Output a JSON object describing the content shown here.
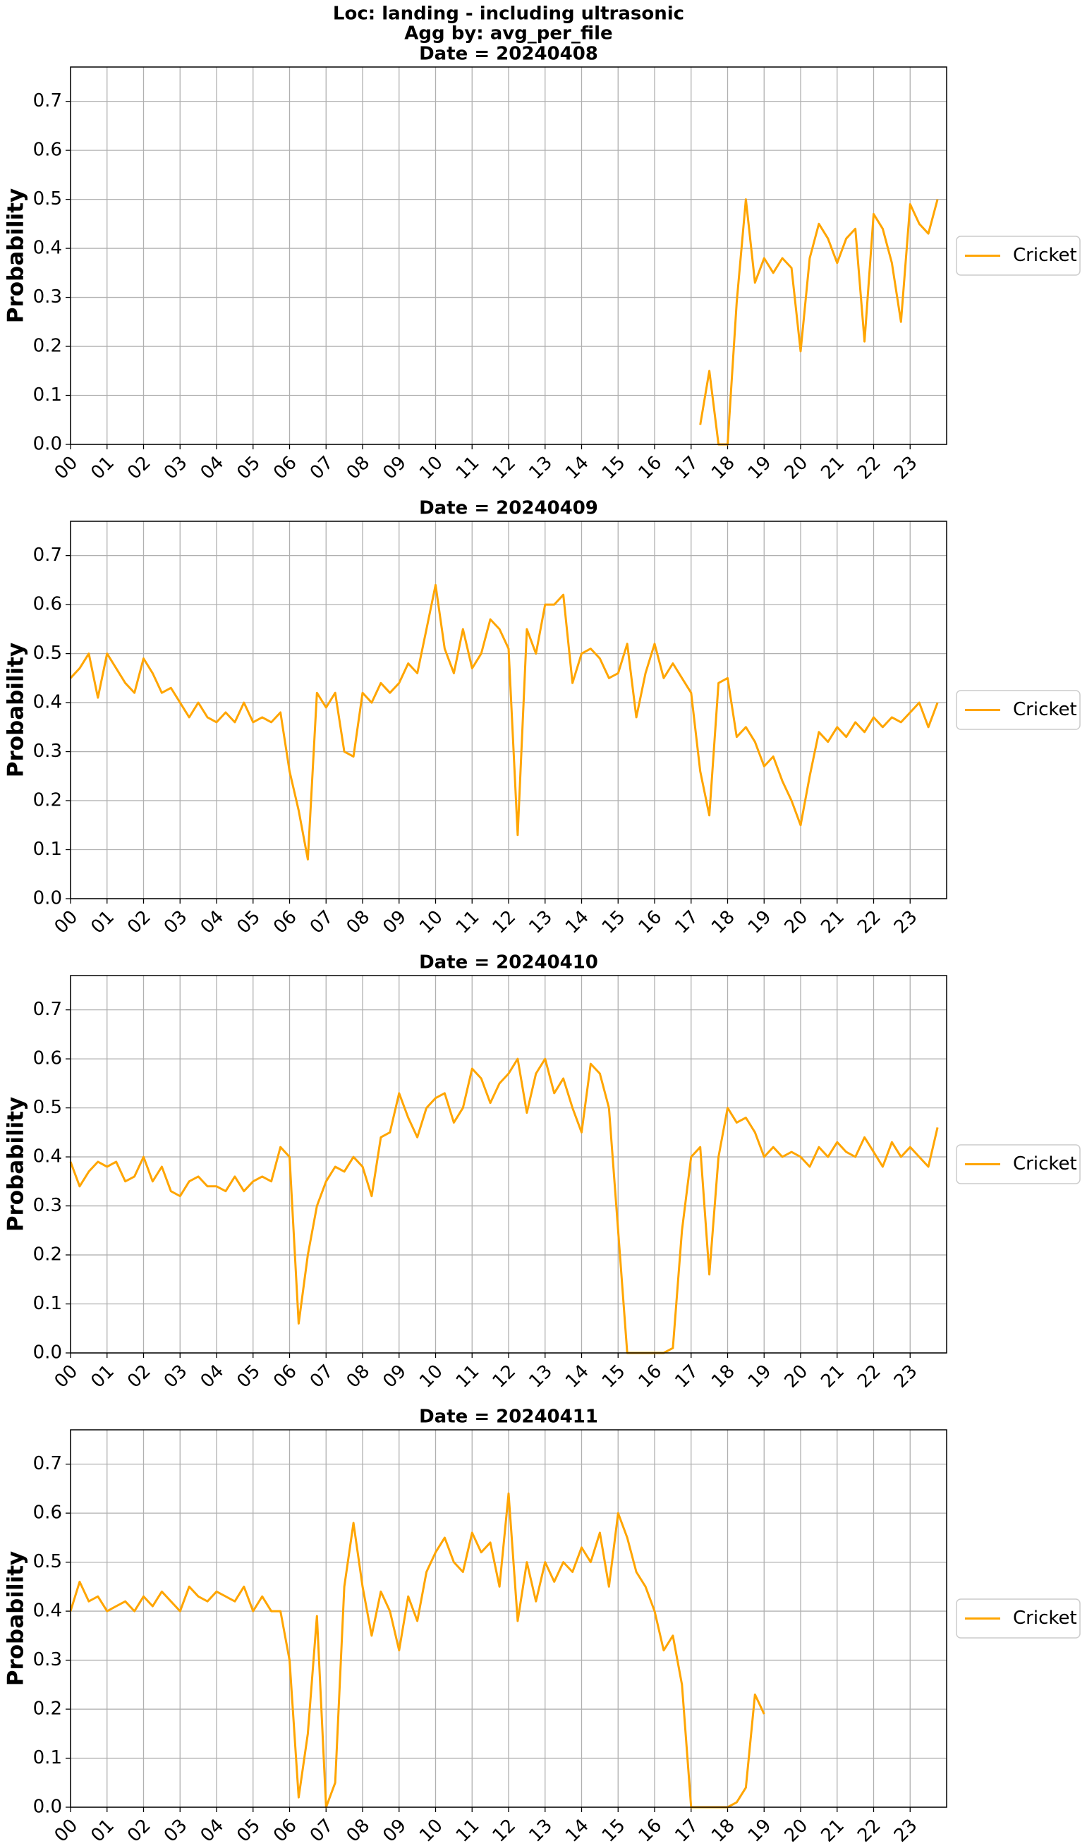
{
  "suptitle": [
    "Loc: landing - including ultrasonic",
    "Agg by: avg_per_file"
  ],
  "chart_data": [
    {
      "type": "line",
      "title": "Date = 20240408",
      "ylabel": "Probability",
      "grid": true,
      "legend": "center right outside",
      "xlim": [
        0,
        24
      ],
      "ylim": [
        0,
        0.77
      ],
      "xticks": [
        {
          "value": 0,
          "label": "00"
        },
        {
          "value": 1,
          "label": "01"
        },
        {
          "value": 2,
          "label": "02"
        },
        {
          "value": 3,
          "label": "03"
        },
        {
          "value": 4,
          "label": "04"
        },
        {
          "value": 5,
          "label": "05"
        },
        {
          "value": 6,
          "label": "06"
        },
        {
          "value": 7,
          "label": "07"
        },
        {
          "value": 8,
          "label": "08"
        },
        {
          "value": 9,
          "label": "09"
        },
        10,
        11,
        12,
        13,
        14,
        15,
        16,
        17,
        18,
        19,
        20,
        21,
        22,
        23
      ],
      "yticks": [
        {
          "value": 0,
          "label": "0.0"
        },
        0.1,
        0.2,
        0.3,
        0.4,
        0.5,
        0.6,
        0.7
      ],
      "x": [
        17.25,
        17.5,
        17.75,
        18,
        18.25,
        18.5,
        18.75,
        19,
        19.25,
        19.5,
        19.75,
        20,
        20.25,
        20.5,
        20.75,
        21,
        21.25,
        21.5,
        21.75,
        22,
        22.25,
        22.5,
        22.75,
        23,
        23.25,
        23.5,
        23.75
      ],
      "series": [
        {
          "name": "Cricket",
          "color": "#ffa500",
          "values": [
            0.04,
            0.15,
            0.0,
            0.0,
            0.29,
            0.5,
            0.33,
            0.38,
            0.35,
            0.38,
            0.36,
            0.19,
            0.38,
            0.45,
            0.42,
            0.37,
            0.42,
            0.44,
            0.21,
            0.47,
            0.44,
            0.37,
            0.25,
            0.49,
            0.45,
            0.43,
            0.5
          ]
        }
      ]
    },
    {
      "type": "line",
      "title": "Date = 20240409",
      "ylabel": "Probability",
      "grid": true,
      "legend": "center right outside",
      "xlim": [
        0,
        24
      ],
      "ylim": [
        0,
        0.77
      ],
      "xticks": [
        {
          "value": 0,
          "label": "00"
        },
        {
          "value": 1,
          "label": "01"
        },
        {
          "value": 2,
          "label": "02"
        },
        {
          "value": 3,
          "label": "03"
        },
        {
          "value": 4,
          "label": "04"
        },
        {
          "value": 5,
          "label": "05"
        },
        {
          "value": 6,
          "label": "06"
        },
        {
          "value": 7,
          "label": "07"
        },
        {
          "value": 8,
          "label": "08"
        },
        {
          "value": 9,
          "label": "09"
        },
        10,
        11,
        12,
        13,
        14,
        15,
        16,
        17,
        18,
        19,
        20,
        21,
        22,
        23
      ],
      "yticks": [
        {
          "value": 0,
          "label": "0.0"
        },
        0.1,
        0.2,
        0.3,
        0.4,
        0.5,
        0.6,
        0.7
      ],
      "x": [
        0,
        0.25,
        0.5,
        0.75,
        1,
        1.25,
        1.5,
        1.75,
        2,
        2.25,
        2.5,
        2.75,
        3,
        3.25,
        3.5,
        3.75,
        4,
        4.25,
        4.5,
        4.75,
        5,
        5.25,
        5.5,
        5.75,
        6,
        6.25,
        6.5,
        6.75,
        7,
        7.25,
        7.5,
        7.75,
        8,
        8.25,
        8.5,
        8.75,
        9,
        9.25,
        9.5,
        9.75,
        10,
        10.25,
        10.5,
        10.75,
        11,
        11.25,
        11.5,
        11.75,
        12,
        12.25,
        12.5,
        12.75,
        13,
        13.25,
        13.5,
        13.75,
        14,
        14.25,
        14.5,
        14.75,
        15,
        15.25,
        15.5,
        15.75,
        16,
        16.25,
        16.5,
        16.75,
        17,
        17.25,
        17.5,
        17.75,
        18,
        18.25,
        18.5,
        18.75,
        19,
        19.25,
        19.5,
        19.75,
        20,
        20.25,
        20.5,
        20.75,
        21,
        21.25,
        21.5,
        21.75,
        22,
        22.25,
        22.5,
        22.75,
        23,
        23.25,
        23.5,
        23.75
      ],
      "series": [
        {
          "name": "Cricket",
          "color": "#ffa500",
          "values": [
            0.45,
            0.47,
            0.5,
            0.41,
            0.5,
            0.47,
            0.44,
            0.42,
            0.49,
            0.46,
            0.42,
            0.43,
            0.4,
            0.37,
            0.4,
            0.37,
            0.36,
            0.38,
            0.36,
            0.4,
            0.36,
            0.37,
            0.36,
            0.38,
            0.26,
            0.18,
            0.08,
            0.42,
            0.39,
            0.42,
            0.3,
            0.29,
            0.42,
            0.4,
            0.44,
            0.42,
            0.44,
            0.48,
            0.46,
            0.55,
            0.64,
            0.51,
            0.46,
            0.55,
            0.47,
            0.5,
            0.57,
            0.55,
            0.51,
            0.13,
            0.55,
            0.5,
            0.6,
            0.6,
            0.62,
            0.44,
            0.5,
            0.51,
            0.49,
            0.45,
            0.46,
            0.52,
            0.37,
            0.46,
            0.52,
            0.45,
            0.48,
            0.45,
            0.42,
            0.26,
            0.17,
            0.44,
            0.45,
            0.33,
            0.35,
            0.32,
            0.27,
            0.29,
            0.24,
            0.2,
            0.15,
            0.25,
            0.34,
            0.32,
            0.35,
            0.33,
            0.36,
            0.34,
            0.37,
            0.35,
            0.37,
            0.36,
            0.38,
            0.4,
            0.35,
            0.4
          ]
        }
      ]
    },
    {
      "type": "line",
      "title": "Date = 20240410",
      "ylabel": "Probability",
      "grid": true,
      "legend": "center right outside",
      "xlim": [
        0,
        24
      ],
      "ylim": [
        0,
        0.77
      ],
      "xticks": [
        {
          "value": 0,
          "label": "00"
        },
        {
          "value": 1,
          "label": "01"
        },
        {
          "value": 2,
          "label": "02"
        },
        {
          "value": 3,
          "label": "03"
        },
        {
          "value": 4,
          "label": "04"
        },
        {
          "value": 5,
          "label": "05"
        },
        {
          "value": 6,
          "label": "06"
        },
        {
          "value": 7,
          "label": "07"
        },
        {
          "value": 8,
          "label": "08"
        },
        {
          "value": 9,
          "label": "09"
        },
        10,
        11,
        12,
        13,
        14,
        15,
        16,
        17,
        18,
        19,
        20,
        21,
        22,
        23
      ],
      "yticks": [
        {
          "value": 0,
          "label": "0.0"
        },
        0.1,
        0.2,
        0.3,
        0.4,
        0.5,
        0.6,
        0.7
      ],
      "x": [
        0,
        0.25,
        0.5,
        0.75,
        1,
        1.25,
        1.5,
        1.75,
        2,
        2.25,
        2.5,
        2.75,
        3,
        3.25,
        3.5,
        3.75,
        4,
        4.25,
        4.5,
        4.75,
        5,
        5.25,
        5.5,
        5.75,
        6,
        6.25,
        6.5,
        6.75,
        7,
        7.25,
        7.5,
        7.75,
        8,
        8.25,
        8.5,
        8.75,
        9,
        9.25,
        9.5,
        9.75,
        10,
        10.25,
        10.5,
        10.75,
        11,
        11.25,
        11.5,
        11.75,
        12,
        12.25,
        12.5,
        12.75,
        13,
        13.25,
        13.5,
        13.75,
        14,
        14.25,
        14.5,
        14.75,
        15,
        15.25,
        15.5,
        15.75,
        16,
        16.25,
        16.5,
        16.75,
        17,
        17.25,
        17.5,
        17.75,
        18,
        18.25,
        18.5,
        18.75,
        19,
        19.25,
        19.5,
        19.75,
        20,
        20.25,
        20.5,
        20.75,
        21,
        21.25,
        21.5,
        21.75,
        22,
        22.25,
        22.5,
        22.75,
        23,
        23.25,
        23.5,
        23.75
      ],
      "series": [
        {
          "name": "Cricket",
          "color": "#ffa500",
          "values": [
            0.39,
            0.34,
            0.37,
            0.39,
            0.38,
            0.39,
            0.35,
            0.36,
            0.4,
            0.35,
            0.38,
            0.33,
            0.32,
            0.35,
            0.36,
            0.34,
            0.34,
            0.33,
            0.36,
            0.33,
            0.35,
            0.36,
            0.35,
            0.42,
            0.4,
            0.06,
            0.2,
            0.3,
            0.35,
            0.38,
            0.37,
            0.4,
            0.38,
            0.32,
            0.44,
            0.45,
            0.53,
            0.48,
            0.44,
            0.5,
            0.52,
            0.53,
            0.47,
            0.5,
            0.58,
            0.56,
            0.51,
            0.55,
            0.57,
            0.6,
            0.49,
            0.57,
            0.6,
            0.53,
            0.56,
            0.5,
            0.45,
            0.59,
            0.57,
            0.5,
            0.25,
            0.0,
            0.0,
            0.0,
            0.0,
            0.0,
            0.01,
            0.25,
            0.4,
            0.42,
            0.16,
            0.4,
            0.5,
            0.47,
            0.48,
            0.45,
            0.4,
            0.42,
            0.4,
            0.41,
            0.4,
            0.38,
            0.42,
            0.4,
            0.43,
            0.41,
            0.4,
            0.44,
            0.41,
            0.38,
            0.43,
            0.4,
            0.42,
            0.4,
            0.38,
            0.46
          ]
        }
      ]
    },
    {
      "type": "line",
      "title": "Date = 20240411",
      "ylabel": "Probability",
      "grid": true,
      "legend": "center right outside",
      "xlim": [
        0,
        24
      ],
      "ylim": [
        0,
        0.77
      ],
      "xticks": [
        {
          "value": 0,
          "label": "00"
        },
        {
          "value": 1,
          "label": "01"
        },
        {
          "value": 2,
          "label": "02"
        },
        {
          "value": 3,
          "label": "03"
        },
        {
          "value": 4,
          "label": "04"
        },
        {
          "value": 5,
          "label": "05"
        },
        {
          "value": 6,
          "label": "06"
        },
        {
          "value": 7,
          "label": "07"
        },
        {
          "value": 8,
          "label": "08"
        },
        {
          "value": 9,
          "label": "09"
        },
        10,
        11,
        12,
        13,
        14,
        15,
        16,
        17,
        18,
        19,
        20,
        21,
        22,
        23
      ],
      "yticks": [
        {
          "value": 0,
          "label": "0.0"
        },
        0.1,
        0.2,
        0.3,
        0.4,
        0.5,
        0.6,
        0.7
      ],
      "x": [
        0,
        0.25,
        0.5,
        0.75,
        1,
        1.25,
        1.5,
        1.75,
        2,
        2.25,
        2.5,
        2.75,
        3,
        3.25,
        3.5,
        3.75,
        4,
        4.25,
        4.5,
        4.75,
        5,
        5.25,
        5.5,
        5.75,
        6,
        6.25,
        6.5,
        6.75,
        7,
        7.25,
        7.5,
        7.75,
        8,
        8.25,
        8.5,
        8.75,
        9,
        9.25,
        9.5,
        9.75,
        10,
        10.25,
        10.5,
        10.75,
        11,
        11.25,
        11.5,
        11.75,
        12,
        12.25,
        12.5,
        12.75,
        13,
        13.25,
        13.5,
        13.75,
        14,
        14.25,
        14.5,
        14.75,
        15,
        15.25,
        15.5,
        15.75,
        16,
        16.25,
        16.5,
        16.75,
        17,
        17.25,
        17.5,
        17.75,
        18,
        18.25,
        18.5,
        18.75,
        19
      ],
      "series": [
        {
          "name": "Cricket",
          "color": "#ffa500",
          "values": [
            0.4,
            0.46,
            0.42,
            0.43,
            0.4,
            0.41,
            0.42,
            0.4,
            0.43,
            0.41,
            0.44,
            0.42,
            0.4,
            0.45,
            0.43,
            0.42,
            0.44,
            0.43,
            0.42,
            0.45,
            0.4,
            0.43,
            0.4,
            0.4,
            0.3,
            0.02,
            0.15,
            0.39,
            0.0,
            0.05,
            0.45,
            0.58,
            0.45,
            0.35,
            0.44,
            0.4,
            0.32,
            0.43,
            0.38,
            0.48,
            0.52,
            0.55,
            0.5,
            0.48,
            0.56,
            0.52,
            0.54,
            0.45,
            0.64,
            0.38,
            0.5,
            0.42,
            0.5,
            0.46,
            0.5,
            0.48,
            0.53,
            0.5,
            0.56,
            0.45,
            0.6,
            0.55,
            0.48,
            0.45,
            0.4,
            0.32,
            0.35,
            0.25,
            0.0,
            0.0,
            0.0,
            0.0,
            0.0,
            0.01,
            0.04,
            0.23,
            0.19
          ]
        }
      ]
    }
  ]
}
